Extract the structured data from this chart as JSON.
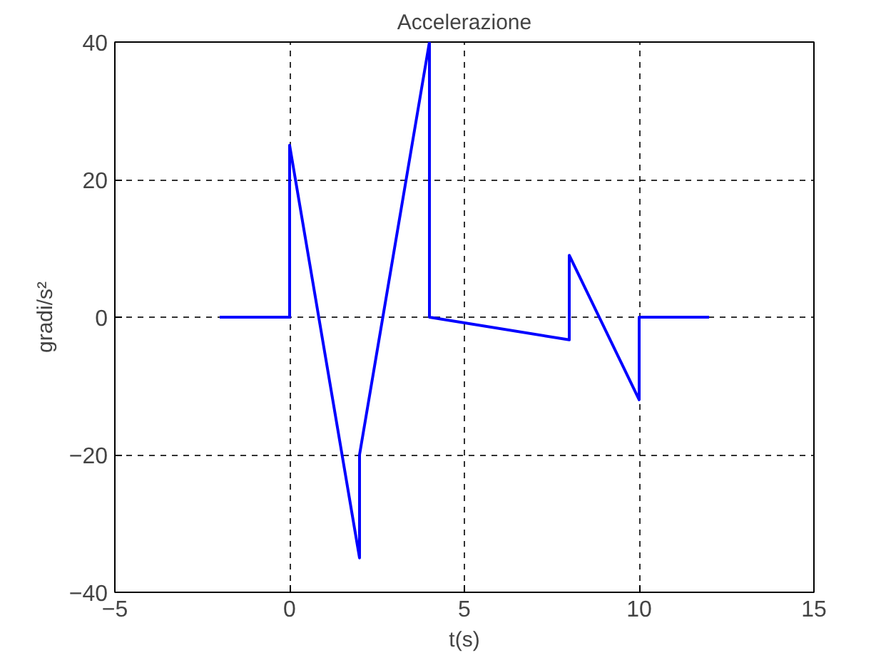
{
  "chart_data": {
    "type": "line",
    "title": "Accelerazione",
    "xlabel": "t(s)",
    "ylabel": "gradi/s²",
    "x": [
      -2,
      0,
      0,
      2,
      2,
      4,
      4,
      8,
      8,
      10,
      10,
      12
    ],
    "series": [
      {
        "color": "#0000ff",
        "values": [
          0,
          0,
          25,
          -35,
          -20,
          40,
          0,
          -3.3,
          9,
          -12,
          0,
          0
        ]
      }
    ],
    "xlim": [
      -5,
      15
    ],
    "xticks": [
      -5,
      0,
      5,
      10,
      15
    ],
    "ylim": [
      -40,
      40
    ],
    "yticks": [
      -40,
      -20,
      0,
      20,
      40
    ],
    "grid": true,
    "line_style": "solid"
  }
}
